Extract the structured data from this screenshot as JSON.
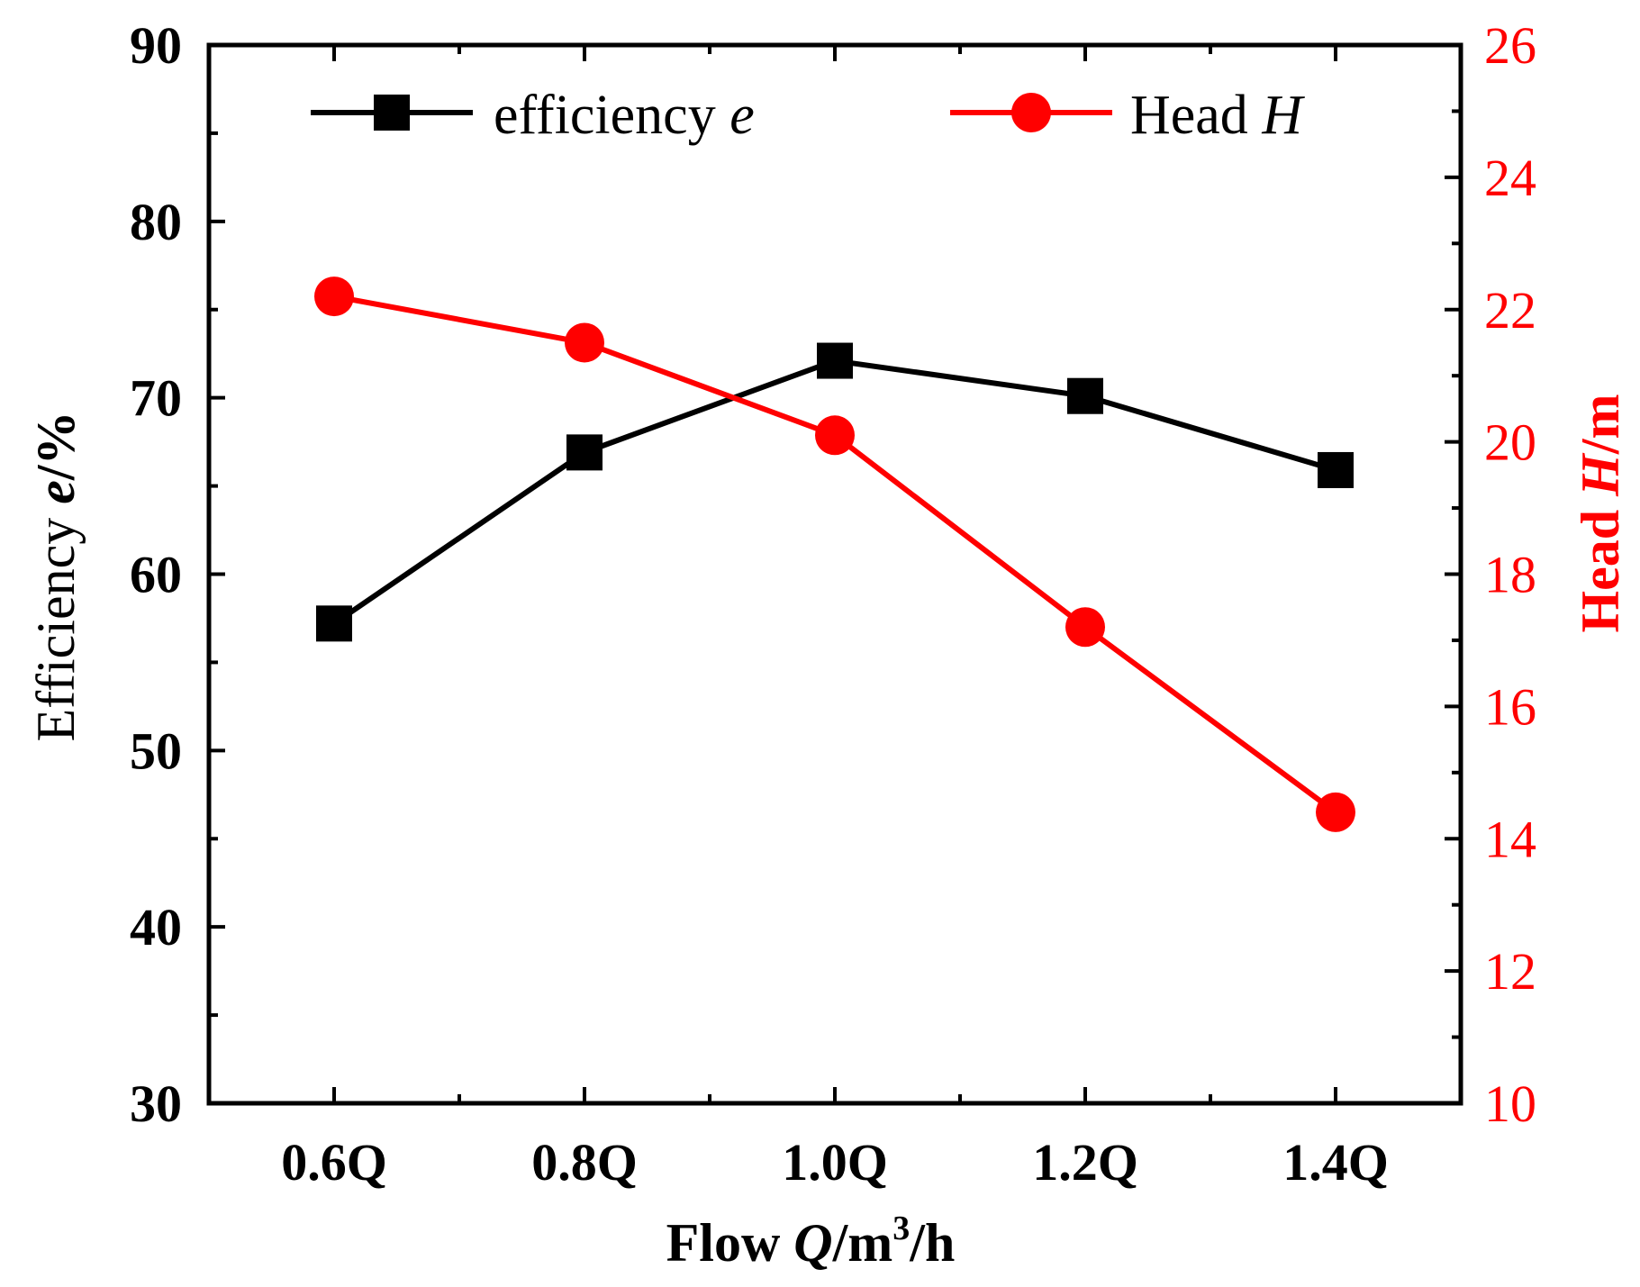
{
  "chart_data": {
    "type": "line",
    "categories": [
      "0.6Q",
      "0.8Q",
      "1.0Q",
      "1.2Q",
      "1.4Q"
    ],
    "xlabel": {
      "prefix": "Flow ",
      "var": "Q",
      "unit": "/m",
      "sup": "3",
      "suffix": "/h"
    },
    "y_left": {
      "label": {
        "prefix": "Efficiency  ",
        "var": "e",
        "unit": "/%"
      },
      "lim": [
        30,
        90
      ],
      "ticks": [
        30,
        40,
        50,
        60,
        70,
        80,
        90
      ],
      "color": "#000000"
    },
    "y_right": {
      "label": {
        "prefix": "Head ",
        "var": "H",
        "unit": "/m"
      },
      "lim": [
        10,
        26
      ],
      "ticks": [
        10,
        12,
        14,
        16,
        18,
        20,
        22,
        24,
        26
      ],
      "color": "#ff0000"
    },
    "series": [
      {
        "name": "efficiency",
        "legend_text": "efficiency ",
        "legend_var": "e",
        "axis": "left",
        "marker": "square",
        "color": "#000000",
        "values": [
          57.2,
          66.9,
          72.1,
          70.1,
          65.9
        ]
      },
      {
        "name": "Head",
        "legend_text": "Head ",
        "legend_var": "H",
        "axis": "right",
        "marker": "circle",
        "color": "#ff0000",
        "values": [
          22.2,
          21.5,
          20.1,
          17.2,
          14.4
        ]
      }
    ],
    "legend_position": "top"
  }
}
